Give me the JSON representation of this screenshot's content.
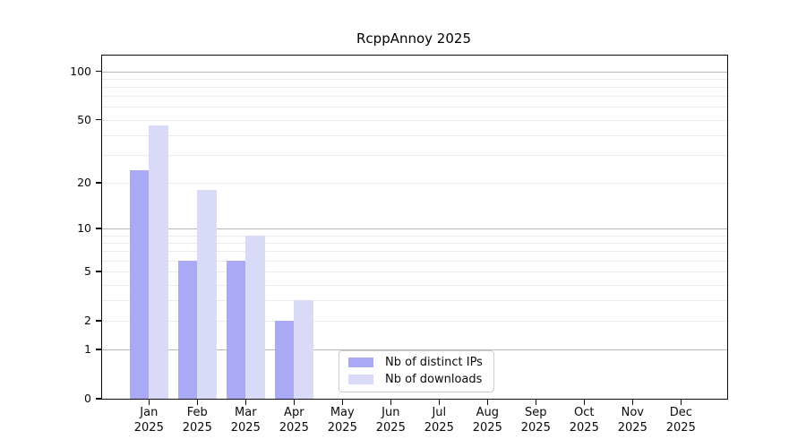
{
  "figure": {
    "title": "RcppAnnoy 2025"
  },
  "legend": {
    "items": [
      {
        "label": "Nb of distinct IPs",
        "color": "#a9a9f5"
      },
      {
        "label": "Nb of downloads",
        "color": "#d9d9f8"
      }
    ]
  },
  "chart_data": {
    "type": "bar",
    "title": "RcppAnnoy 2025",
    "scale": "log1p",
    "categories": [
      "Jan",
      "Feb",
      "Mar",
      "Apr",
      "May",
      "Jun",
      "Jul",
      "Aug",
      "Sep",
      "Oct",
      "Nov",
      "Dec"
    ],
    "category_year": "2025",
    "series": [
      {
        "name": "Nb of distinct IPs",
        "color": "#a9a9f5",
        "values": [
          24,
          6,
          6,
          2,
          0,
          0,
          0,
          0,
          0,
          0,
          0,
          0
        ]
      },
      {
        "name": "Nb of downloads",
        "color": "#d9d9f8",
        "values": [
          46,
          18,
          9,
          3,
          0,
          0,
          0,
          0,
          0,
          0,
          0,
          0
        ]
      }
    ],
    "xlabel": "",
    "ylabel": "",
    "yticks": [
      0,
      1,
      2,
      5,
      10,
      20,
      50,
      100
    ],
    "ylim": [
      0,
      125
    ],
    "grid_major": [
      1,
      10,
      100
    ],
    "grid_minor": [
      2,
      3,
      4,
      5,
      6,
      7,
      8,
      9,
      20,
      30,
      40,
      50,
      60,
      70,
      80,
      90
    ],
    "legend_position": "lower-center-inside",
    "legend": [
      "Nb of distinct IPs",
      "Nb of downloads"
    ]
  }
}
